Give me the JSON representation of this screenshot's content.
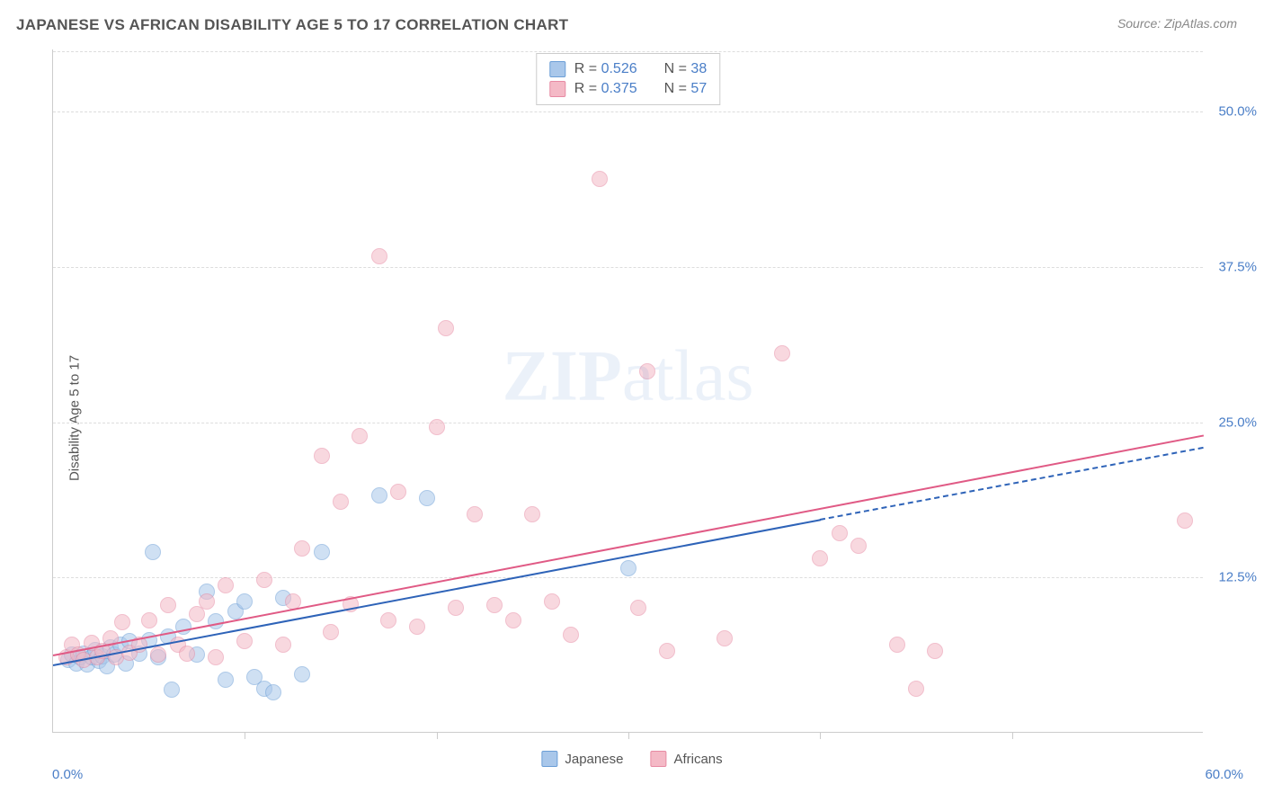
{
  "title": "JAPANESE VS AFRICAN DISABILITY AGE 5 TO 17 CORRELATION CHART",
  "source": "Source: ZipAtlas.com",
  "chart": {
    "type": "scatter",
    "ylabel": "Disability Age 5 to 17",
    "xlim": [
      0,
      60
    ],
    "ylim": [
      0,
      55
    ],
    "xlabel_min": "0.0%",
    "xlabel_max": "60.0%",
    "yticks": [
      {
        "v": 12.5,
        "label": "12.5%"
      },
      {
        "v": 25.0,
        "label": "25.0%"
      },
      {
        "v": 37.5,
        "label": "37.5%"
      },
      {
        "v": 50.0,
        "label": "50.0%"
      }
    ],
    "xtick_marks": [
      10,
      20,
      30,
      40,
      50
    ],
    "watermark": "ZIPatlas",
    "background_color": "#ffffff",
    "grid_color": "#dddddd",
    "axis_color": "#cccccc",
    "tick_label_color": "#4a7ec7",
    "series": [
      {
        "name": "Japanese",
        "fill": "#a9c7ea",
        "stroke": "#6b9ed6",
        "marker_radius": 9,
        "fill_opacity": 0.55,
        "r": "0.526",
        "n": "38",
        "trend": {
          "x1": 0,
          "y1": 5.5,
          "x2": 40,
          "y2": 17.2,
          "color": "#2e63b8",
          "dash_to_x": 60,
          "dash_to_y": 23.0
        },
        "points": [
          [
            0.8,
            5.8
          ],
          [
            1.0,
            6.2
          ],
          [
            1.2,
            5.5
          ],
          [
            1.4,
            6.0
          ],
          [
            1.6,
            6.3
          ],
          [
            1.8,
            5.4
          ],
          [
            2.0,
            6.0
          ],
          [
            2.2,
            6.6
          ],
          [
            2.4,
            5.7
          ],
          [
            2.6,
            6.1
          ],
          [
            2.8,
            5.3
          ],
          [
            3.0,
            6.8
          ],
          [
            3.2,
            6.2
          ],
          [
            3.5,
            7.0
          ],
          [
            3.8,
            5.5
          ],
          [
            4.0,
            7.3
          ],
          [
            4.5,
            6.3
          ],
          [
            5.0,
            7.4
          ],
          [
            5.2,
            14.5
          ],
          [
            5.5,
            6.0
          ],
          [
            6.0,
            7.7
          ],
          [
            6.2,
            3.4
          ],
          [
            6.8,
            8.5
          ],
          [
            7.5,
            6.2
          ],
          [
            8.0,
            11.3
          ],
          [
            8.5,
            8.9
          ],
          [
            9.0,
            4.2
          ],
          [
            9.5,
            9.7
          ],
          [
            10.0,
            10.5
          ],
          [
            10.5,
            4.4
          ],
          [
            11.0,
            3.5
          ],
          [
            11.5,
            3.2
          ],
          [
            12.0,
            10.8
          ],
          [
            13.0,
            4.6
          ],
          [
            14.0,
            14.5
          ],
          [
            17.0,
            19.0
          ],
          [
            19.5,
            18.8
          ],
          [
            30.0,
            13.2
          ]
        ]
      },
      {
        "name": "Africans",
        "fill": "#f4b9c6",
        "stroke": "#e78aa3",
        "marker_radius": 9,
        "fill_opacity": 0.55,
        "r": "0.375",
        "n": "57",
        "trend": {
          "x1": 0,
          "y1": 6.3,
          "x2": 60,
          "y2": 24.0,
          "color": "#e05a85"
        },
        "points": [
          [
            0.7,
            6.0
          ],
          [
            1.0,
            7.0
          ],
          [
            1.3,
            6.2
          ],
          [
            1.6,
            5.8
          ],
          [
            2.0,
            7.2
          ],
          [
            2.3,
            6.0
          ],
          [
            2.6,
            6.5
          ],
          [
            3.0,
            7.5
          ],
          [
            3.3,
            6.0
          ],
          [
            3.6,
            8.8
          ],
          [
            4.0,
            6.4
          ],
          [
            4.5,
            7.0
          ],
          [
            5.0,
            9.0
          ],
          [
            5.5,
            6.2
          ],
          [
            6.0,
            10.2
          ],
          [
            6.5,
            7.0
          ],
          [
            7.0,
            6.3
          ],
          [
            7.5,
            9.5
          ],
          [
            8.0,
            10.5
          ],
          [
            8.5,
            6.0
          ],
          [
            9.0,
            11.8
          ],
          [
            10.0,
            7.3
          ],
          [
            11.0,
            12.2
          ],
          [
            12.0,
            7.0
          ],
          [
            12.5,
            10.5
          ],
          [
            13.0,
            14.8
          ],
          [
            14.0,
            22.2
          ],
          [
            14.5,
            8.0
          ],
          [
            15.0,
            18.5
          ],
          [
            15.5,
            10.3
          ],
          [
            16.0,
            23.8
          ],
          [
            17.0,
            38.3
          ],
          [
            17.5,
            9.0
          ],
          [
            18.0,
            19.3
          ],
          [
            19.0,
            8.5
          ],
          [
            20.0,
            24.5
          ],
          [
            20.5,
            32.5
          ],
          [
            21.0,
            10.0
          ],
          [
            22.0,
            17.5
          ],
          [
            23.0,
            10.2
          ],
          [
            24.0,
            9.0
          ],
          [
            25.0,
            17.5
          ],
          [
            26.0,
            10.5
          ],
          [
            27.0,
            7.8
          ],
          [
            28.5,
            44.5
          ],
          [
            30.5,
            10.0
          ],
          [
            31.0,
            29.0
          ],
          [
            32.0,
            6.5
          ],
          [
            35.0,
            7.5
          ],
          [
            38.0,
            30.5
          ],
          [
            40.0,
            14.0
          ],
          [
            41.0,
            16.0
          ],
          [
            42.0,
            15.0
          ],
          [
            44.0,
            7.0
          ],
          [
            45.0,
            3.5
          ],
          [
            46.0,
            6.5
          ],
          [
            59.0,
            17.0
          ]
        ]
      }
    ],
    "legend_bottom": [
      {
        "label": "Japanese",
        "fill": "#a9c7ea",
        "stroke": "#6b9ed6"
      },
      {
        "label": "Africans",
        "fill": "#f4b9c6",
        "stroke": "#e78aa3"
      }
    ]
  }
}
